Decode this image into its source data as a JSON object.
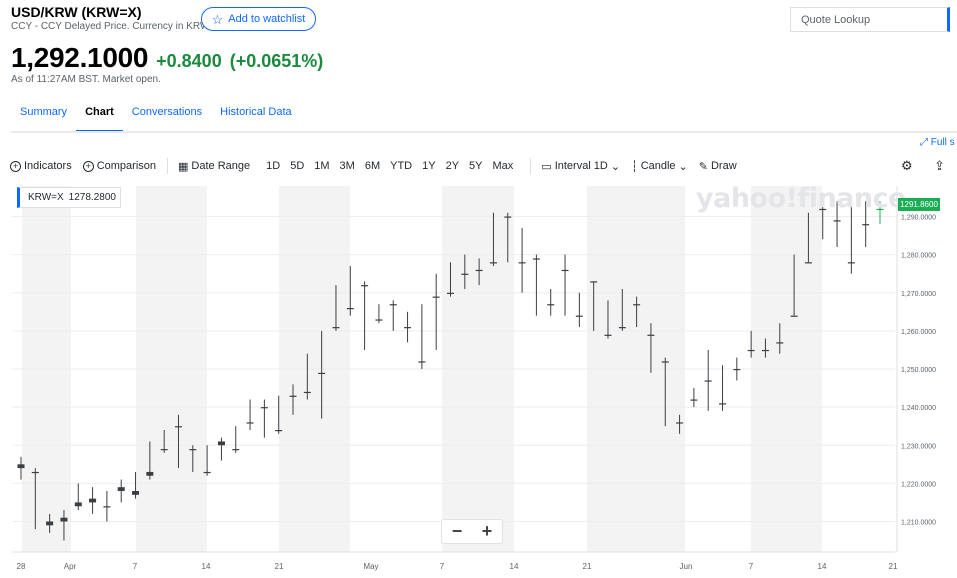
{
  "header": {
    "title": "USD/KRW (KRW=X)",
    "subtitle": "CCY - CCY Delayed Price. Currency in KRW",
    "watchlist_label": "Add to watchlist",
    "search_placeholder": "Quote Lookup"
  },
  "quote": {
    "price": "1,292.1000",
    "change": "+0.8400",
    "change_pct": "(+0.0651%)",
    "as_of": "As of 11:27AM BST. Market open."
  },
  "tabs": [
    {
      "label": "Summary",
      "active": false
    },
    {
      "label": "Chart",
      "active": true
    },
    {
      "label": "Conversations",
      "active": false
    },
    {
      "label": "Historical Data",
      "active": false
    }
  ],
  "fullscreen_label": "Full s",
  "toolbar": {
    "indicators": "Indicators",
    "comparison": "Comparison",
    "date_range": "Date Range",
    "ranges": [
      "1D",
      "5D",
      "1M",
      "3M",
      "6M",
      "YTD",
      "1Y",
      "2Y",
      "5Y",
      "Max"
    ],
    "interval_label": "Interval",
    "interval_value": "1D",
    "candle": "Candle",
    "draw": "Draw"
  },
  "colors": {
    "accent": "#0f69ff",
    "positive": "#1a8a3d",
    "last_price_badge": "#1aae54"
  },
  "chart_data": {
    "type": "candlestick",
    "legend_symbol": "KRW=X",
    "legend_value": "1278.2800",
    "watermark": "yahoo!finance",
    "last_price": "1291.8600",
    "ylim": [
      1202,
      1298
    ],
    "y_ticks": [
      "1,210.0000",
      "1,220.0000",
      "1,230.0000",
      "1,240.0000",
      "1,250.0000",
      "1,260.0000",
      "1,270.0000",
      "1,280.0000",
      "1,290.0000"
    ],
    "x_ticks": [
      "28",
      "Apr",
      "7",
      "14",
      "21",
      "May",
      "7",
      "14",
      "21",
      "Jun",
      "7",
      "14",
      "21"
    ],
    "candles": [
      {
        "o": 1225,
        "h": 1227,
        "l": 1221,
        "c": 1224
      },
      {
        "o": 1223,
        "h": 1224,
        "l": 1208,
        "c": 1223
      },
      {
        "o": 1209,
        "h": 1212,
        "l": 1207,
        "c": 1210
      },
      {
        "o": 1210,
        "h": 1213,
        "l": 1205,
        "c": 1211
      },
      {
        "o": 1214,
        "h": 1220,
        "l": 1213,
        "c": 1215
      },
      {
        "o": 1215,
        "h": 1219,
        "l": 1212,
        "c": 1216
      },
      {
        "o": 1214,
        "h": 1218,
        "l": 1210,
        "c": 1214
      },
      {
        "o": 1218,
        "h": 1221,
        "l": 1215,
        "c": 1219
      },
      {
        "o": 1217,
        "h": 1223,
        "l": 1216,
        "c": 1218
      },
      {
        "o": 1222,
        "h": 1231,
        "l": 1221,
        "c": 1223
      },
      {
        "o": 1229,
        "h": 1234,
        "l": 1228,
        "c": 1229
      },
      {
        "o": 1235,
        "h": 1238,
        "l": 1224,
        "c": 1235
      },
      {
        "o": 1229,
        "h": 1230,
        "l": 1223,
        "c": 1229
      },
      {
        "o": 1223,
        "h": 1230,
        "l": 1222,
        "c": 1223
      },
      {
        "o": 1230,
        "h": 1232,
        "l": 1226,
        "c": 1231
      },
      {
        "o": 1229,
        "h": 1235,
        "l": 1228,
        "c": 1229
      },
      {
        "o": 1236,
        "h": 1242,
        "l": 1234,
        "c": 1236
      },
      {
        "o": 1240,
        "h": 1242,
        "l": 1232,
        "c": 1240
      },
      {
        "o": 1234,
        "h": 1243,
        "l": 1233,
        "c": 1234
      },
      {
        "o": 1243,
        "h": 1246,
        "l": 1238,
        "c": 1243
      },
      {
        "o": 1244,
        "h": 1254,
        "l": 1242,
        "c": 1244
      },
      {
        "o": 1249,
        "h": 1260,
        "l": 1237,
        "c": 1249
      },
      {
        "o": 1261,
        "h": 1272,
        "l": 1260,
        "c": 1261
      },
      {
        "o": 1266,
        "h": 1277,
        "l": 1264,
        "c": 1266
      },
      {
        "o": 1272,
        "h": 1273,
        "l": 1255,
        "c": 1272
      },
      {
        "o": 1263,
        "h": 1267,
        "l": 1262,
        "c": 1263
      },
      {
        "o": 1267,
        "h": 1268,
        "l": 1260,
        "c": 1267
      },
      {
        "o": 1261,
        "h": 1265,
        "l": 1257,
        "c": 1261
      },
      {
        "o": 1252,
        "h": 1267,
        "l": 1250,
        "c": 1252
      },
      {
        "o": 1269,
        "h": 1275,
        "l": 1255,
        "c": 1269
      },
      {
        "o": 1270,
        "h": 1278,
        "l": 1269,
        "c": 1270
      },
      {
        "o": 1275,
        "h": 1280,
        "l": 1271,
        "c": 1275
      },
      {
        "o": 1276,
        "h": 1279,
        "l": 1272,
        "c": 1276
      },
      {
        "o": 1278,
        "h": 1291,
        "l": 1277,
        "c": 1278
      },
      {
        "o": 1290,
        "h": 1291,
        "l": 1278,
        "c": 1290
      },
      {
        "o": 1278,
        "h": 1287,
        "l": 1270,
        "c": 1278
      },
      {
        "o": 1279,
        "h": 1280,
        "l": 1264,
        "c": 1279
      },
      {
        "o": 1267,
        "h": 1271,
        "l": 1264,
        "c": 1267
      },
      {
        "o": 1276,
        "h": 1280,
        "l": 1264,
        "c": 1276
      },
      {
        "o": 1264,
        "h": 1270,
        "l": 1261,
        "c": 1264
      },
      {
        "o": 1273,
        "h": 1273,
        "l": 1260,
        "c": 1273
      },
      {
        "o": 1259,
        "h": 1268,
        "l": 1258,
        "c": 1259
      },
      {
        "o": 1261,
        "h": 1271,
        "l": 1260,
        "c": 1261
      },
      {
        "o": 1267,
        "h": 1269,
        "l": 1261,
        "c": 1267
      },
      {
        "o": 1259,
        "h": 1262,
        "l": 1249,
        "c": 1259
      },
      {
        "o": 1252,
        "h": 1253,
        "l": 1235,
        "c": 1252
      },
      {
        "o": 1236,
        "h": 1238,
        "l": 1233,
        "c": 1236
      },
      {
        "o": 1242,
        "h": 1245,
        "l": 1240,
        "c": 1242
      },
      {
        "o": 1247,
        "h": 1255,
        "l": 1239,
        "c": 1247
      },
      {
        "o": 1241,
        "h": 1251,
        "l": 1239,
        "c": 1241
      },
      {
        "o": 1250,
        "h": 1253,
        "l": 1247,
        "c": 1250
      },
      {
        "o": 1255,
        "h": 1260,
        "l": 1253,
        "c": 1255
      },
      {
        "o": 1255,
        "h": 1258,
        "l": 1253,
        "c": 1255
      },
      {
        "o": 1257,
        "h": 1262,
        "l": 1254,
        "c": 1257
      },
      {
        "o": 1264,
        "h": 1280,
        "l": 1264,
        "c": 1264
      },
      {
        "o": 1278,
        "h": 1291,
        "l": 1278,
        "c": 1278
      },
      {
        "o": 1292,
        "h": 1294,
        "l": 1284,
        "c": 1292
      },
      {
        "o": 1289,
        "h": 1294,
        "l": 1282,
        "c": 1289
      },
      {
        "o": 1278,
        "h": 1295,
        "l": 1275,
        "c": 1278
      },
      {
        "o": 1288,
        "h": 1294,
        "l": 1282,
        "c": 1288
      },
      {
        "o": 1292,
        "h": 1294,
        "l": 1288,
        "c": 1292
      }
    ]
  }
}
